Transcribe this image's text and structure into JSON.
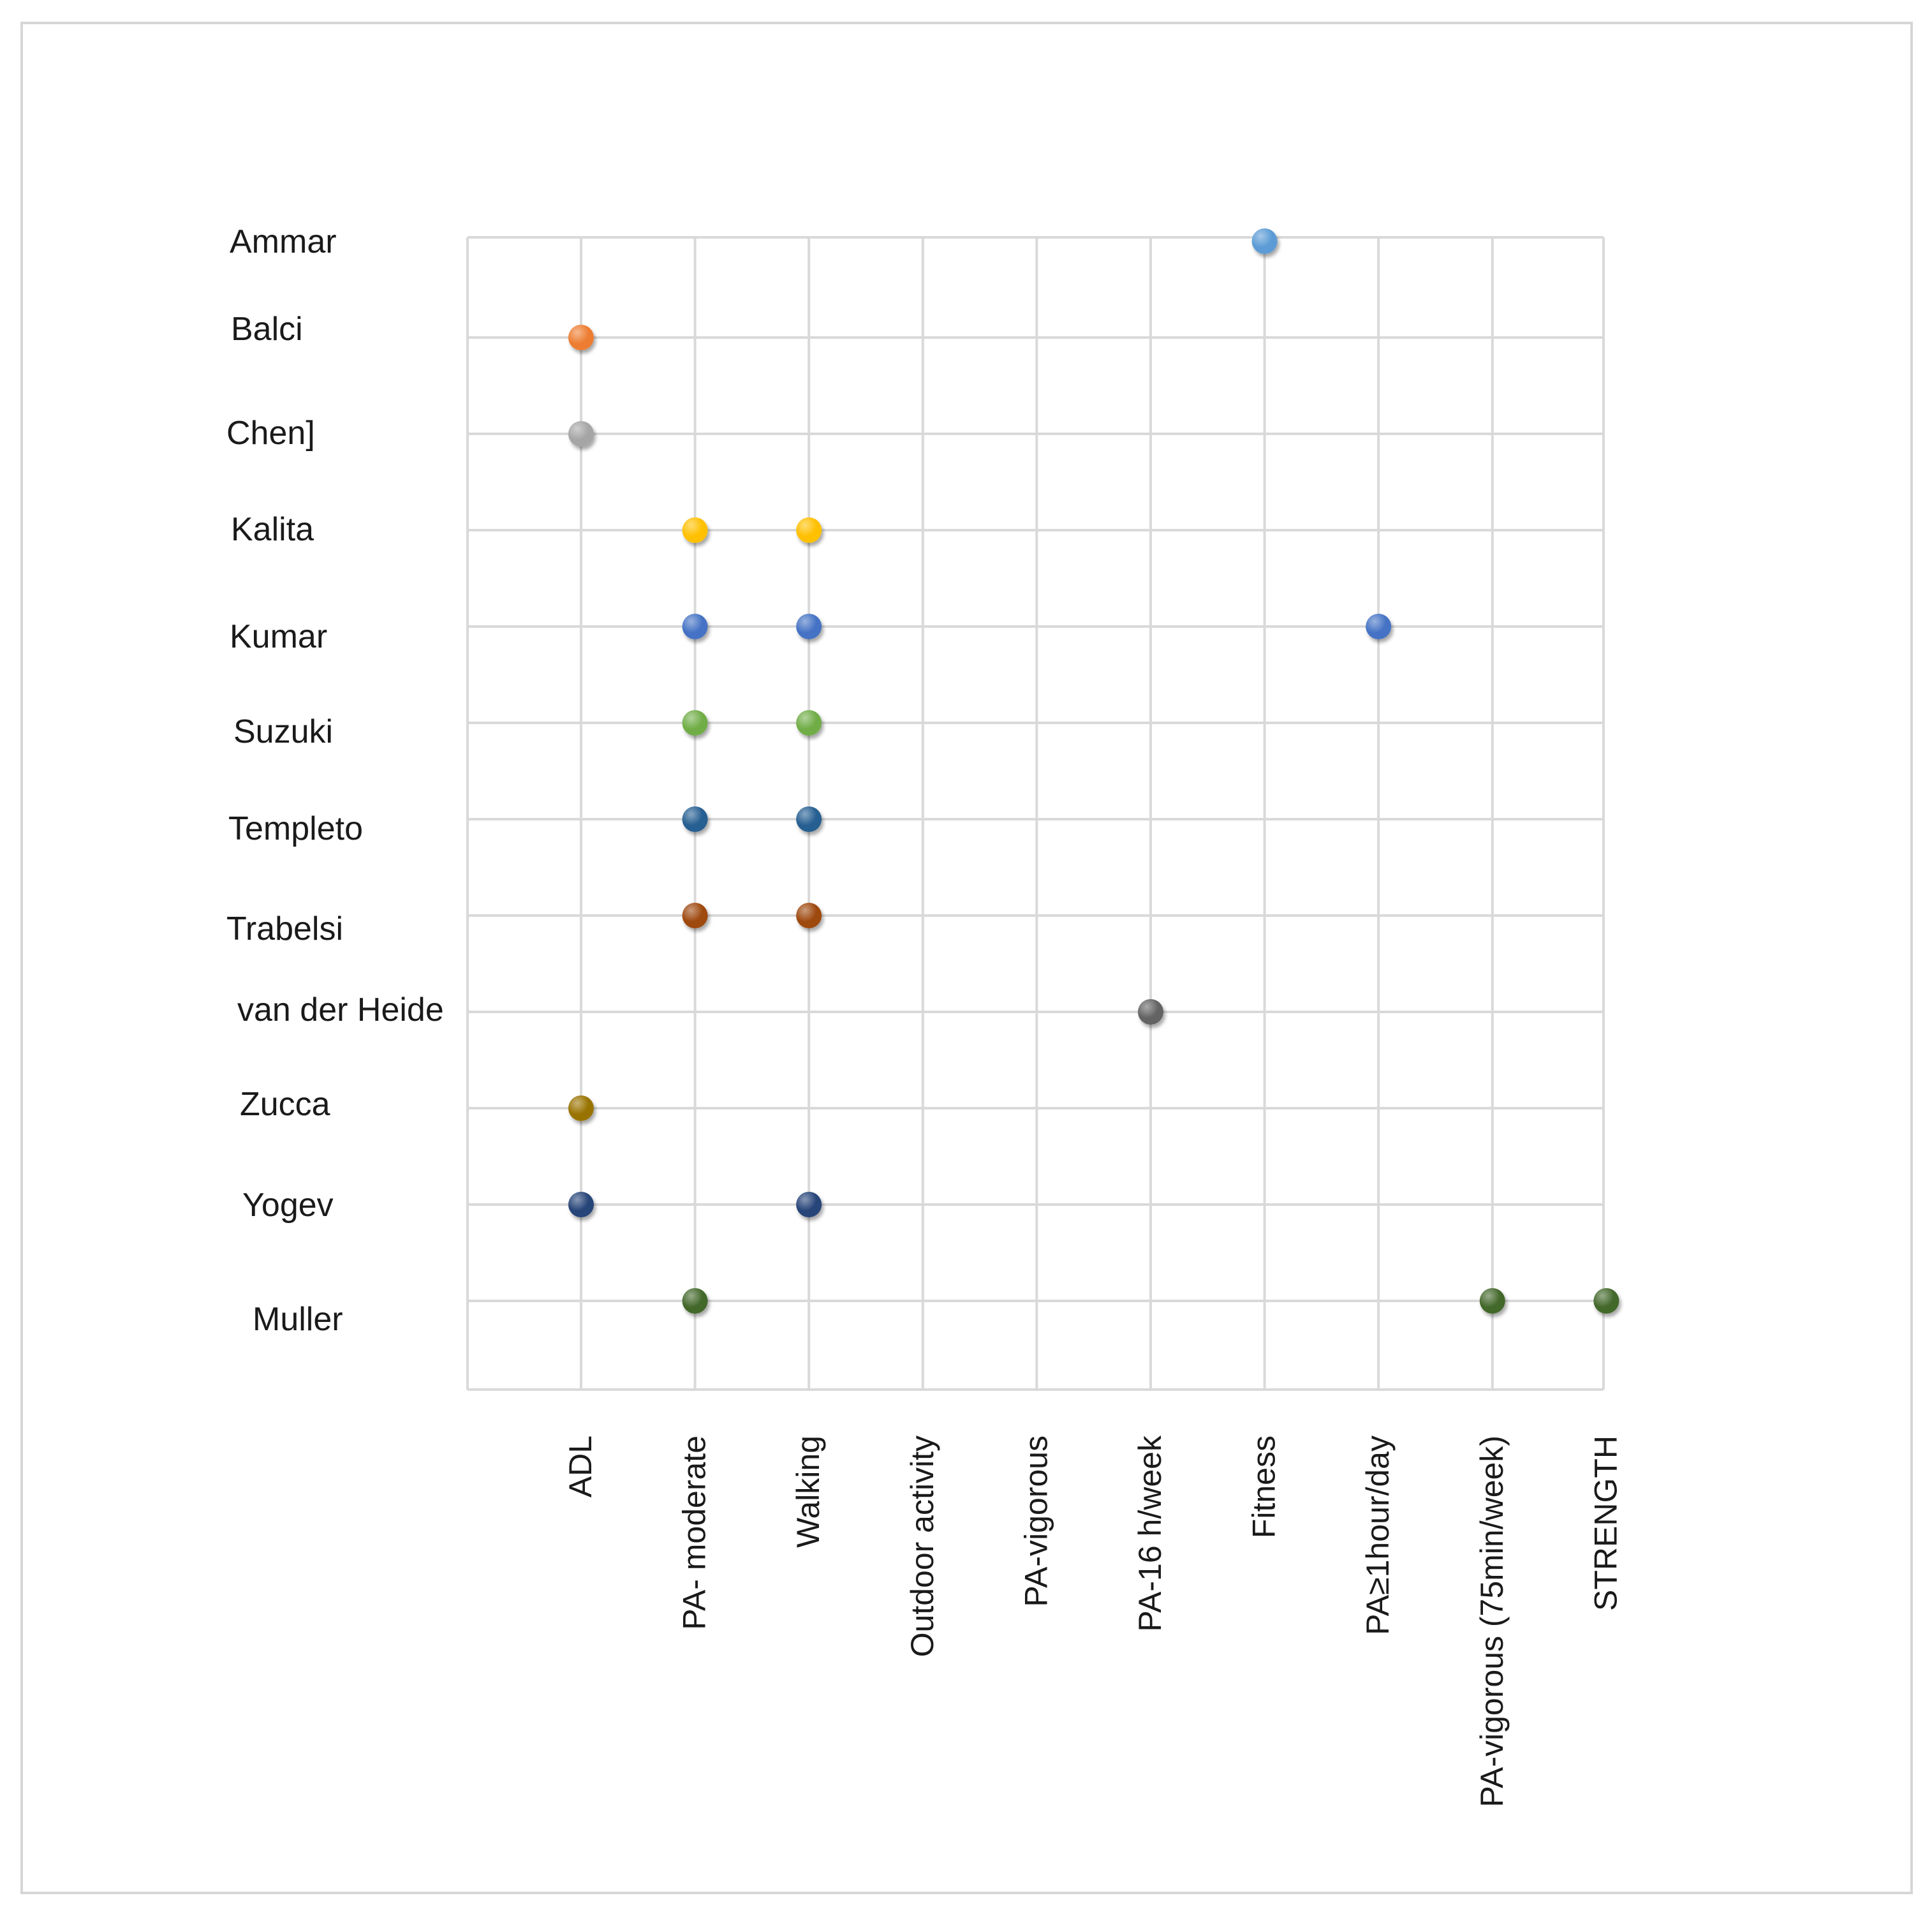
{
  "chart_data": {
    "type": "scatter",
    "title": "",
    "xlabel": "",
    "ylabel": "",
    "grid": true,
    "categories": [
      "ADL",
      "PA- moderate",
      "Walking",
      "Outdoor activity",
      "PA-vigorous",
      "PA-16 h/week",
      "Fitness",
      "PA≥1hour/day",
      "PA-vigorous (75min/week)",
      "STRENGTH"
    ],
    "studies": [
      "Ammar",
      "Balci",
      "Chen]",
      "Kalita",
      "Kumar",
      "Suzuki",
      "Templeto",
      "Trabelsi",
      "van der Heide",
      "Zucca",
      "Yogev",
      "Muller"
    ],
    "series": [
      {
        "name": "Ammar",
        "color": "#5b9bd5",
        "points": [
          "Fitness"
        ]
      },
      {
        "name": "Balci",
        "color": "#ed7d31",
        "points": [
          "ADL"
        ]
      },
      {
        "name": "Chen]",
        "color": "#a5a5a5",
        "points": [
          "ADL"
        ]
      },
      {
        "name": "Kalita",
        "color": "#ffc000",
        "points": [
          "PA- moderate",
          "Walking"
        ]
      },
      {
        "name": "Kumar",
        "color": "#4472c4",
        "points": [
          "PA- moderate",
          "Walking",
          "PA≥1hour/day"
        ]
      },
      {
        "name": "Suzuki",
        "color": "#70ad47",
        "points": [
          "PA- moderate",
          "Walking"
        ]
      },
      {
        "name": "Templeto",
        "color": "#255e91",
        "points": [
          "PA- moderate",
          "Walking"
        ]
      },
      {
        "name": "Trabelsi",
        "color": "#9e480e",
        "points": [
          "PA- moderate",
          "Walking"
        ]
      },
      {
        "name": "van der Heide",
        "color": "#636363",
        "points": [
          "PA-16 h/week"
        ]
      },
      {
        "name": "Zucca",
        "color": "#997300",
        "points": [
          "ADL"
        ]
      },
      {
        "name": "Yogev",
        "color": "#264478",
        "points": [
          "ADL",
          "Walking"
        ]
      },
      {
        "name": "Muller",
        "color": "#43682b",
        "points": [
          "PA- moderate",
          "PA-vigorous (75min/week)",
          "STRENGTH"
        ]
      }
    ]
  }
}
